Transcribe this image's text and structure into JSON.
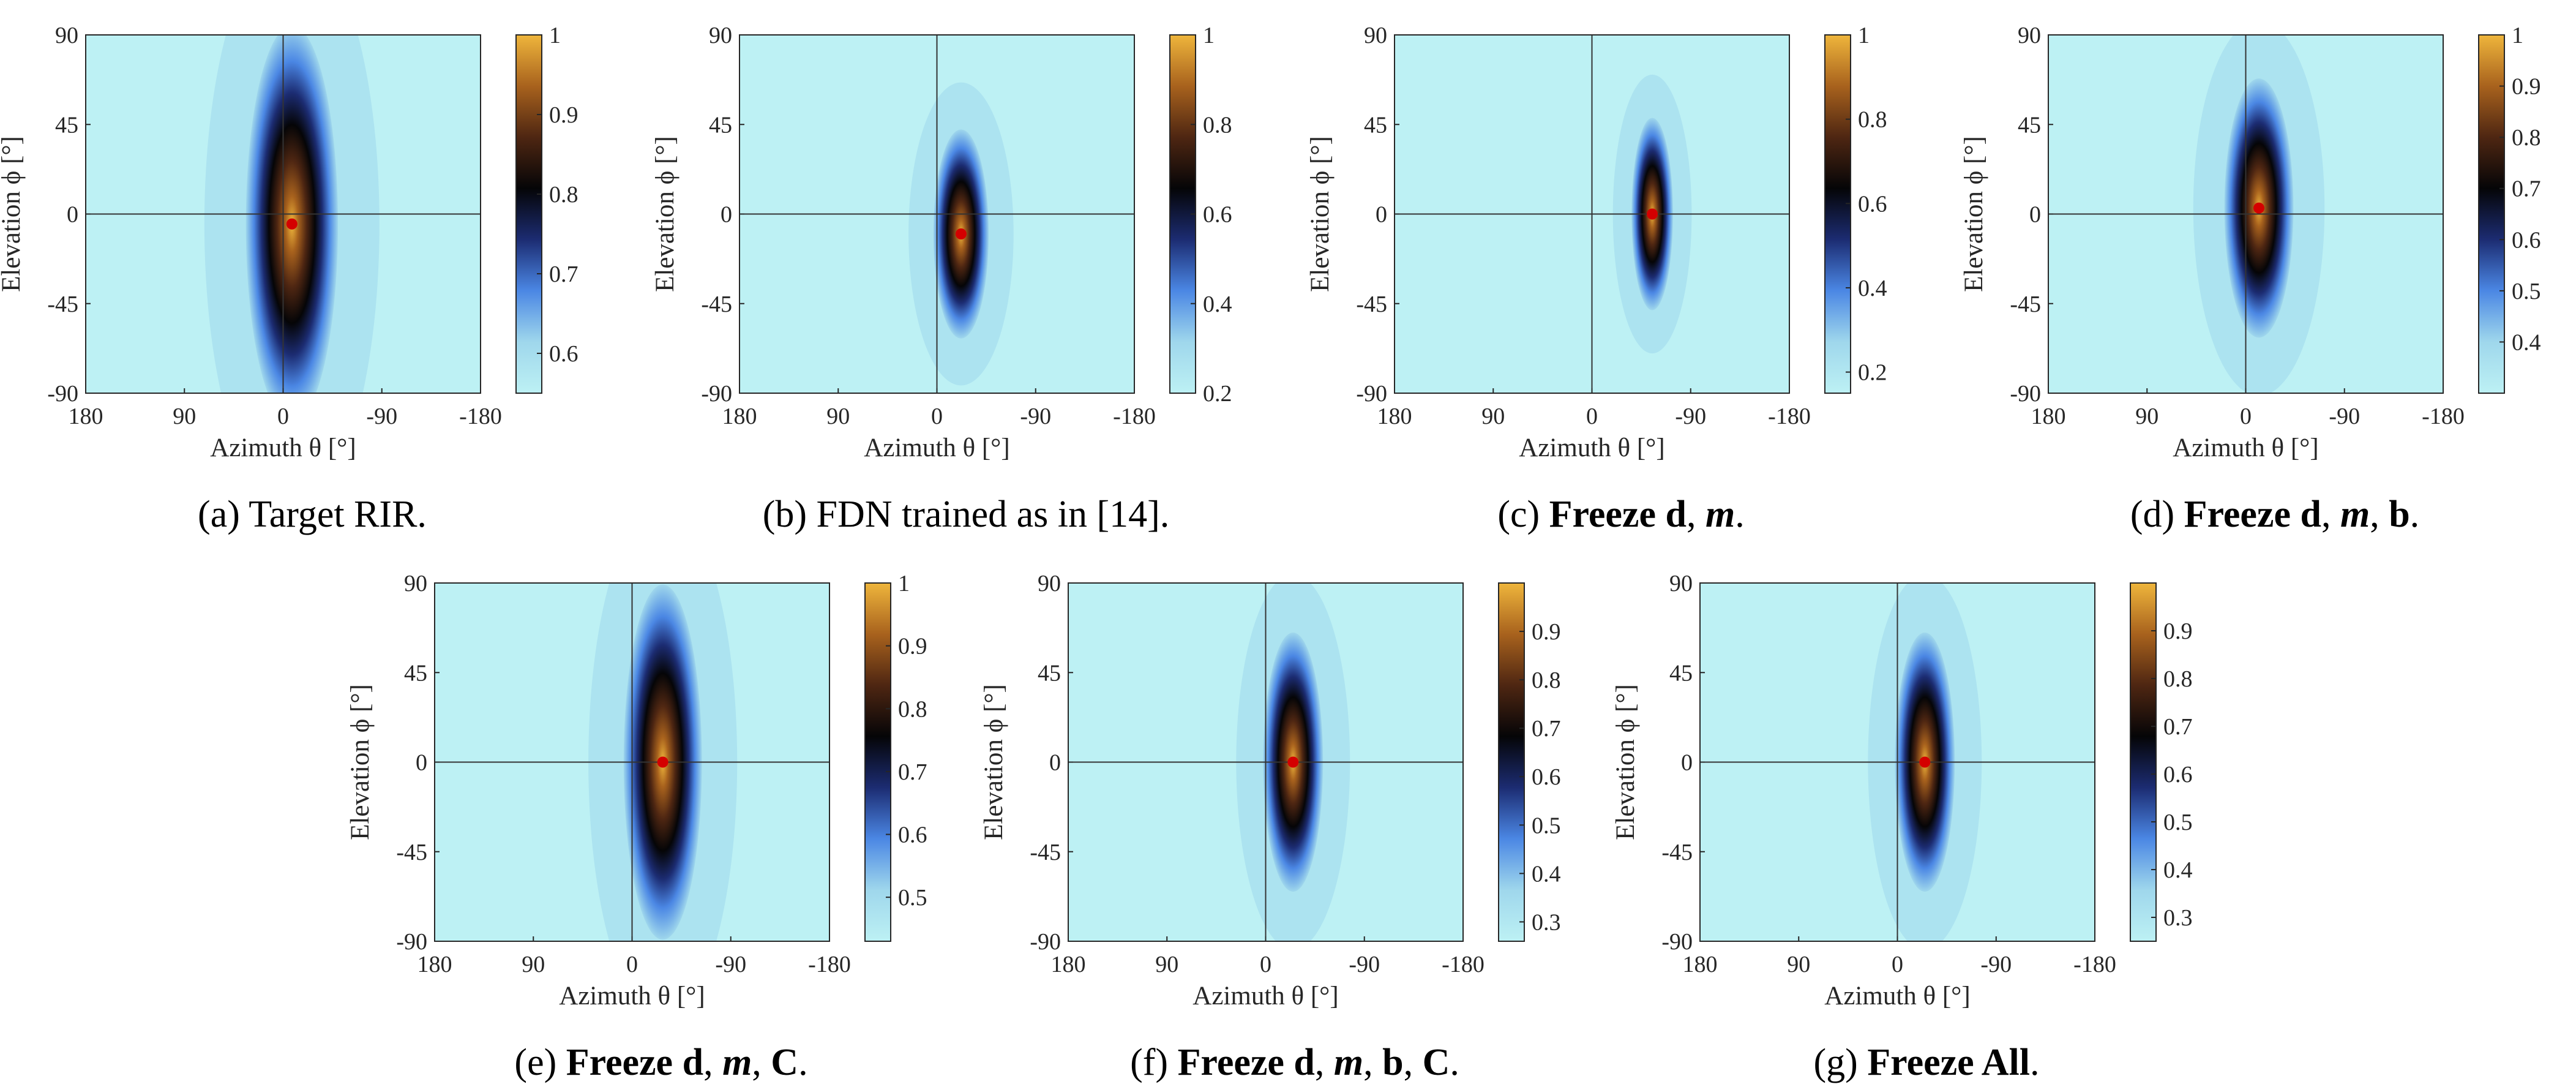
{
  "chart_data": [
    {
      "type": "heatmap",
      "id": "a",
      "caption": [
        {
          "t": "(a) Target RIR."
        }
      ],
      "xlabel": "Azimuth θ [°]",
      "ylabel": "Elevation ϕ [°]",
      "xlim": [
        180,
        -180
      ],
      "ylim": [
        -90,
        90
      ],
      "xticks": [
        "180",
        "90",
        "0",
        "-90",
        "-180"
      ],
      "yticks": [
        "90",
        "45",
        "0",
        "-45",
        "-90"
      ],
      "peak": {
        "azimuth": -8,
        "elevation": -5,
        "width_deg": 40,
        "height_deg": 95
      },
      "colorbar": {
        "min": 0.55,
        "max": 1.0,
        "ticks": [
          "1",
          "0.9",
          "0.8",
          "0.7",
          "0.6"
        ]
      }
    },
    {
      "type": "heatmap",
      "id": "b",
      "caption": [
        {
          "t": "(b) FDN trained as in [14]."
        }
      ],
      "xlabel": "Azimuth θ [°]",
      "ylabel": "Elevation ϕ [°]",
      "xlim": [
        180,
        -180
      ],
      "ylim": [
        -90,
        90
      ],
      "xticks": [
        "180",
        "90",
        "0",
        "-90",
        "-180"
      ],
      "yticks": [
        "90",
        "45",
        "0",
        "-45",
        "-90"
      ],
      "peak": {
        "azimuth": -22,
        "elevation": -10,
        "width_deg": 24,
        "height_deg": 50
      },
      "colorbar": {
        "min": 0.2,
        "max": 1.0,
        "ticks": [
          "1",
          "0.8",
          "0.6",
          "0.4",
          "0.2"
        ]
      }
    },
    {
      "type": "heatmap",
      "id": "c",
      "caption": [
        {
          "t": "(c) "
        },
        {
          "t": "Freeze d",
          "b": true
        },
        {
          "t": ", "
        },
        {
          "t": "m",
          "i": true
        },
        {
          "t": "."
        }
      ],
      "xlabel": "Azimuth θ [°]",
      "ylabel": "Elevation ϕ [°]",
      "xlim": [
        180,
        -180
      ],
      "ylim": [
        -90,
        90
      ],
      "xticks": [
        "180",
        "90",
        "0",
        "-90",
        "-180"
      ],
      "yticks": [
        "90",
        "45",
        "0",
        "-45",
        "-90"
      ],
      "peak": {
        "azimuth": -55,
        "elevation": 0,
        "width_deg": 18,
        "height_deg": 46
      },
      "colorbar": {
        "min": 0.15,
        "max": 1.0,
        "ticks": [
          "1",
          "0.8",
          "0.6",
          "0.4",
          "0.2"
        ]
      }
    },
    {
      "type": "heatmap",
      "id": "d",
      "caption": [
        {
          "t": "(d) "
        },
        {
          "t": "Freeze d",
          "b": true
        },
        {
          "t": ", "
        },
        {
          "t": "m",
          "i": true
        },
        {
          "t": ", "
        },
        {
          "t": "b",
          "b": true
        },
        {
          "t": "."
        }
      ],
      "xlabel": "Azimuth θ [°]",
      "ylabel": "Elevation ϕ [°]",
      "xlim": [
        180,
        -180
      ],
      "ylim": [
        -90,
        90
      ],
      "xticks": [
        "180",
        "90",
        "0",
        "-90",
        "-180"
      ],
      "yticks": [
        "90",
        "45",
        "0",
        "-45",
        "-90"
      ],
      "peak": {
        "azimuth": -12,
        "elevation": 3,
        "width_deg": 30,
        "height_deg": 62
      },
      "colorbar": {
        "min": 0.3,
        "max": 1.0,
        "ticks": [
          "1",
          "0.9",
          "0.8",
          "0.7",
          "0.6",
          "0.5",
          "0.4"
        ]
      }
    },
    {
      "type": "heatmap",
      "id": "e",
      "caption": [
        {
          "t": "(e) "
        },
        {
          "t": "Freeze d",
          "b": true
        },
        {
          "t": ", "
        },
        {
          "t": "m",
          "i": true
        },
        {
          "t": ", "
        },
        {
          "t": "C",
          "b": true
        },
        {
          "t": "."
        }
      ],
      "xlabel": "Azimuth θ [°]",
      "ylabel": "Elevation ϕ [°]",
      "xlim": [
        180,
        -180
      ],
      "ylim": [
        -90,
        90
      ],
      "xticks": [
        "180",
        "90",
        "0",
        "-90",
        "-180"
      ],
      "yticks": [
        "90",
        "45",
        "0",
        "-45",
        "-90"
      ],
      "peak": {
        "azimuth": -28,
        "elevation": 0,
        "width_deg": 34,
        "height_deg": 85
      },
      "colorbar": {
        "min": 0.43,
        "max": 1.0,
        "ticks": [
          "1",
          "0.9",
          "0.8",
          "0.7",
          "0.6",
          "0.5"
        ]
      }
    },
    {
      "type": "heatmap",
      "id": "f",
      "caption": [
        {
          "t": "(f) "
        },
        {
          "t": "Freeze d",
          "b": true
        },
        {
          "t": ", "
        },
        {
          "t": "m",
          "i": true
        },
        {
          "t": ", "
        },
        {
          "t": "b",
          "b": true
        },
        {
          "t": ", "
        },
        {
          "t": "C",
          "b": true
        },
        {
          "t": "."
        }
      ],
      "xlabel": "Azimuth θ [°]",
      "ylabel": "Elevation ϕ [°]",
      "xlim": [
        180,
        -180
      ],
      "ylim": [
        -90,
        90
      ],
      "xticks": [
        "180",
        "90",
        "0",
        "-90",
        "-180"
      ],
      "yticks": [
        "90",
        "45",
        "0",
        "-45",
        "-90"
      ],
      "peak": {
        "azimuth": -25,
        "elevation": 0,
        "width_deg": 26,
        "height_deg": 62
      },
      "colorbar": {
        "min": 0.26,
        "max": 1.0,
        "ticks": [
          "0.9",
          "0.8",
          "0.7",
          "0.6",
          "0.5",
          "0.4",
          "0.3"
        ]
      }
    },
    {
      "type": "heatmap",
      "id": "g",
      "caption": [
        {
          "t": "(g) "
        },
        {
          "t": "Freeze All",
          "b": true
        },
        {
          "t": "."
        }
      ],
      "xlabel": "Azimuth θ [°]",
      "ylabel": "Elevation ϕ [°]",
      "xlim": [
        180,
        -180
      ],
      "ylim": [
        -90,
        90
      ],
      "xticks": [
        "180",
        "90",
        "0",
        "-90",
        "-180"
      ],
      "yticks": [
        "90",
        "45",
        "0",
        "-45",
        "-90"
      ],
      "peak": {
        "azimuth": -25,
        "elevation": 0,
        "width_deg": 26,
        "height_deg": 62
      },
      "colorbar": {
        "min": 0.25,
        "max": 1.0,
        "ticks": [
          "0.9",
          "0.8",
          "0.7",
          "0.6",
          "0.5",
          "0.4",
          "0.3"
        ]
      }
    }
  ],
  "colors": {
    "colormap": [
      "#bdf1f4",
      "#9fd7ec",
      "#4b87e4",
      "#1c2c72",
      "#050507",
      "#4e2612",
      "#a8621d",
      "#efb63c"
    ],
    "marker": "#d40000",
    "axis": "#262626"
  }
}
